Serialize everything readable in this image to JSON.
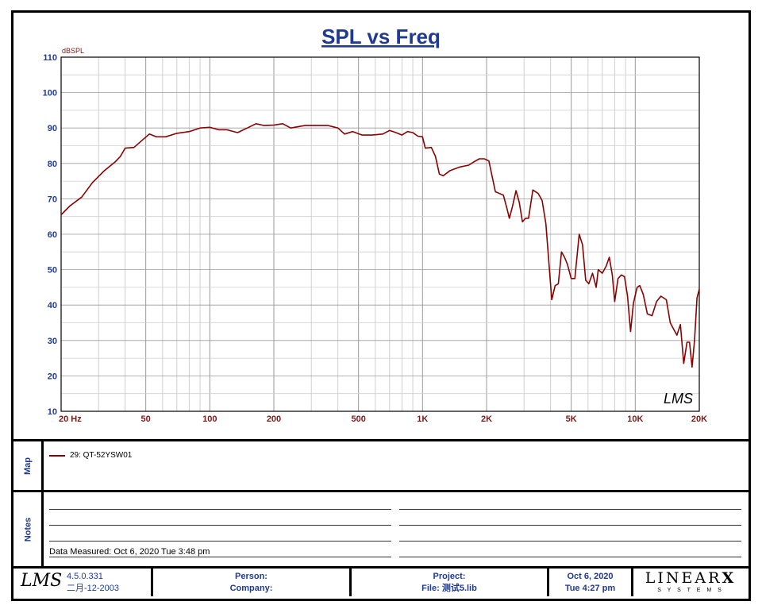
{
  "chart_data": {
    "type": "line",
    "title": "SPL vs Freq",
    "ylabel": "dBSPL",
    "xlabel": "",
    "xscale": "log",
    "xlim": [
      20,
      20000
    ],
    "ylim": [
      10,
      110
    ],
    "grid": true,
    "yticks": [
      10,
      20,
      30,
      40,
      50,
      60,
      70,
      80,
      90,
      100,
      110
    ],
    "xtick_labels": [
      {
        "value": 20,
        "label": "20  Hz"
      },
      {
        "value": 50,
        "label": "50"
      },
      {
        "value": 100,
        "label": "100"
      },
      {
        "value": 200,
        "label": "200"
      },
      {
        "value": 500,
        "label": "500"
      },
      {
        "value": 1000,
        "label": "1K"
      },
      {
        "value": 2000,
        "label": "2K"
      },
      {
        "value": 5000,
        "label": "5K"
      },
      {
        "value": 10000,
        "label": "10K"
      },
      {
        "value": 20000,
        "label": "20K"
      }
    ],
    "series": [
      {
        "name": "29: QT-52YSW01",
        "color": "#8b0000",
        "points": [
          [
            20,
            65.5
          ],
          [
            22,
            68
          ],
          [
            25,
            70.5
          ],
          [
            28,
            74.5
          ],
          [
            32,
            78
          ],
          [
            36,
            80.5
          ],
          [
            38,
            82
          ],
          [
            40,
            84.3
          ],
          [
            44,
            84.5
          ],
          [
            48,
            86.5
          ],
          [
            52,
            88.3
          ],
          [
            56,
            87.5
          ],
          [
            62,
            87.5
          ],
          [
            70,
            88.5
          ],
          [
            80,
            89
          ],
          [
            90,
            90
          ],
          [
            100,
            90.2
          ],
          [
            110,
            89.5
          ],
          [
            120,
            89.5
          ],
          [
            135,
            88.7
          ],
          [
            150,
            90
          ],
          [
            165,
            91.2
          ],
          [
            180,
            90.7
          ],
          [
            200,
            90.8
          ],
          [
            220,
            91.2
          ],
          [
            240,
            90
          ],
          [
            280,
            90.7
          ],
          [
            320,
            90.7
          ],
          [
            360,
            90.7
          ],
          [
            400,
            90
          ],
          [
            430,
            88.3
          ],
          [
            470,
            89
          ],
          [
            520,
            88
          ],
          [
            580,
            88
          ],
          [
            650,
            88.3
          ],
          [
            700,
            89.3
          ],
          [
            750,
            88.7
          ],
          [
            800,
            88
          ],
          [
            850,
            89
          ],
          [
            900,
            88.7
          ],
          [
            950,
            87.7
          ],
          [
            1000,
            87.5
          ],
          [
            1030,
            84.3
          ],
          [
            1100,
            84.5
          ],
          [
            1150,
            82
          ],
          [
            1200,
            77
          ],
          [
            1250,
            76.5
          ],
          [
            1350,
            78
          ],
          [
            1500,
            79
          ],
          [
            1650,
            79.5
          ],
          [
            1750,
            80.5
          ],
          [
            1850,
            81.3
          ],
          [
            1950,
            81.3
          ],
          [
            2050,
            80.7
          ],
          [
            2200,
            72
          ],
          [
            2300,
            71.5
          ],
          [
            2400,
            71
          ],
          [
            2500,
            67
          ],
          [
            2560,
            64.5
          ],
          [
            2650,
            68
          ],
          [
            2750,
            72.3
          ],
          [
            2850,
            69
          ],
          [
            2950,
            63.5
          ],
          [
            3050,
            64.5
          ],
          [
            3150,
            64.5
          ],
          [
            3300,
            72.5
          ],
          [
            3500,
            71.5
          ],
          [
            3650,
            69.5
          ],
          [
            3800,
            63
          ],
          [
            3950,
            50
          ],
          [
            4050,
            41.5
          ],
          [
            4200,
            45.5
          ],
          [
            4350,
            46
          ],
          [
            4500,
            55
          ],
          [
            4650,
            53.5
          ],
          [
            4800,
            51.5
          ],
          [
            5000,
            47.5
          ],
          [
            5200,
            47.5
          ],
          [
            5450,
            60
          ],
          [
            5650,
            57
          ],
          [
            5850,
            47
          ],
          [
            6050,
            46
          ],
          [
            6300,
            49
          ],
          [
            6550,
            45
          ],
          [
            6700,
            50
          ],
          [
            7000,
            49
          ],
          [
            7300,
            51
          ],
          [
            7550,
            53.5
          ],
          [
            7800,
            48.5
          ],
          [
            8000,
            41
          ],
          [
            8300,
            47.5
          ],
          [
            8600,
            48.5
          ],
          [
            8900,
            48
          ],
          [
            9200,
            42.5
          ],
          [
            9500,
            32.5
          ],
          [
            9800,
            40.5
          ],
          [
            10200,
            45
          ],
          [
            10500,
            45.5
          ],
          [
            10900,
            43
          ],
          [
            11400,
            37.5
          ],
          [
            12000,
            37
          ],
          [
            12600,
            41
          ],
          [
            13200,
            42.5
          ],
          [
            14000,
            41.5
          ],
          [
            14600,
            35
          ],
          [
            15200,
            33
          ],
          [
            15700,
            31.5
          ],
          [
            16300,
            34.5
          ],
          [
            16900,
            23.5
          ],
          [
            17500,
            29.5
          ],
          [
            18000,
            29.5
          ],
          [
            18500,
            22.5
          ],
          [
            19000,
            30
          ],
          [
            19500,
            42
          ],
          [
            20000,
            44.5
          ]
        ]
      }
    ]
  },
  "map_label": "Map",
  "notes_label": "Notes",
  "legend": {
    "label": "29: QT-52YSW01",
    "color": "#8b0000"
  },
  "data_measured": "Data Measured: Oct  6, 2020  Tue  3:48 pm",
  "watermark": "LMS",
  "footer": {
    "logo": "LMS",
    "version": "4.5.0.331",
    "build_date": "二月-12-2003",
    "person_label": "Person:",
    "company_label": "Company:",
    "project_label": "Project:",
    "file_label": "File: 测试5.lib",
    "date": "Oct  6, 2020",
    "time": "Tue  4:27 pm",
    "brand_top": "LINEAR",
    "brand_x": "X",
    "brand_bottom": "S Y S T E M S"
  }
}
